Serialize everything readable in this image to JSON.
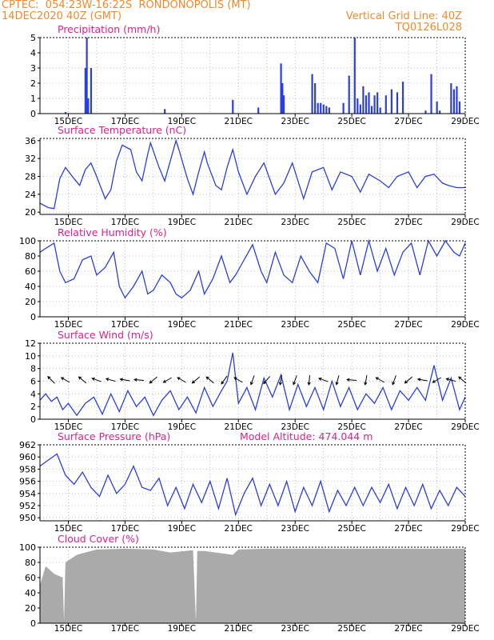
{
  "header": {
    "line1_left": "CPTEC:  054:23W-16:22S  RONDONOPOLIS (MT)",
    "line2_left": "14DEC2020 40Z (GMT)",
    "line2_right": "Vertical Grid Line: 40Z",
    "line3_right": "TQ0126L028"
  },
  "colors": {
    "header": "#f08a2c",
    "title": "#e0218a",
    "series": "#2a3fe0",
    "cloud": "#aaaaaa",
    "grid": "#b0b0b0"
  },
  "x_axis": {
    "ticks": [
      "15DEC",
      "17DEC",
      "19DEC",
      "21DEC",
      "23DEC",
      "25DEC",
      "27DEC",
      "29DEC"
    ],
    "start_day": 14.0,
    "end_day": 29.0,
    "tick_days": [
      15,
      17,
      19,
      21,
      23,
      25,
      27,
      29
    ],
    "grid_days": [
      15,
      16,
      17,
      18,
      19,
      20,
      21,
      22,
      23,
      24,
      25,
      26,
      27,
      28,
      29
    ]
  },
  "chart_data": [
    {
      "id": "precip",
      "type": "bar",
      "title": "Precipitation (mm/h)",
      "ylim": [
        0,
        5
      ],
      "yticks": [
        0,
        1,
        2,
        3,
        4,
        5
      ],
      "x": [
        14.9,
        15.6,
        15.65,
        15.7,
        15.8,
        18.4,
        20.8,
        21.7,
        22.5,
        22.55,
        22.6,
        23.6,
        23.7,
        23.8,
        23.9,
        24.0,
        24.1,
        24.2,
        24.7,
        24.9,
        25.1,
        25.2,
        25.3,
        25.4,
        25.5,
        25.6,
        25.7,
        25.8,
        25.9,
        26.0,
        26.2,
        26.4,
        26.6,
        26.8,
        27.6,
        27.8,
        28.0,
        28.1,
        28.5,
        28.6,
        28.7,
        28.8
      ],
      "values": [
        0.1,
        3.0,
        5.0,
        1.0,
        3.0,
        0.3,
        0.9,
        0.4,
        3.3,
        2.0,
        1.2,
        2.6,
        2.0,
        0.7,
        0.7,
        0.6,
        0.5,
        0.4,
        0.7,
        2.5,
        5.0,
        1.0,
        0.6,
        1.8,
        1.2,
        1.4,
        0.5,
        1.2,
        1.4,
        0.4,
        1.2,
        1.6,
        1.4,
        2.1,
        0.2,
        2.6,
        0.8,
        0.2,
        2.0,
        1.6,
        1.8,
        0.8
      ]
    },
    {
      "id": "temp",
      "type": "line",
      "title": "Surface Temperature (nC)",
      "ylim": [
        19.5,
        36.5
      ],
      "yticks": [
        20,
        24,
        28,
        32,
        36
      ],
      "x": [
        14.0,
        14.3,
        14.5,
        14.7,
        14.9,
        15.2,
        15.4,
        15.6,
        15.8,
        16.0,
        16.3,
        16.5,
        16.7,
        16.9,
        17.2,
        17.4,
        17.6,
        17.8,
        17.9,
        18.2,
        18.4,
        18.6,
        18.8,
        18.9,
        19.2,
        19.4,
        19.6,
        19.8,
        19.9,
        20.2,
        20.4,
        20.6,
        20.8,
        21.0,
        21.3,
        21.6,
        21.9,
        22.3,
        22.6,
        22.9,
        23.3,
        23.6,
        24.0,
        24.3,
        24.6,
        25.0,
        25.3,
        25.6,
        26.0,
        26.3,
        26.6,
        27.0,
        27.3,
        27.6,
        27.9,
        28.2,
        28.4,
        28.7,
        29.0
      ],
      "values": [
        22.0,
        21.0,
        20.8,
        27.5,
        30.0,
        27.5,
        26.0,
        29.5,
        31.0,
        28.0,
        23.0,
        25.0,
        31.5,
        35.0,
        34.0,
        29.0,
        27.0,
        33.0,
        35.5,
        30.0,
        27.0,
        31.5,
        36.0,
        34.0,
        27.5,
        24.0,
        29.0,
        33.5,
        31.0,
        26.0,
        25.0,
        30.0,
        34.0,
        29.0,
        24.0,
        28.0,
        31.0,
        24.0,
        26.5,
        31.0,
        23.0,
        29.0,
        30.0,
        25.0,
        29.0,
        28.0,
        24.5,
        28.5,
        27.0,
        25.5,
        28.0,
        29.0,
        25.5,
        28.0,
        28.5,
        26.5,
        26.0,
        25.5,
        25.5
      ]
    },
    {
      "id": "rh",
      "type": "line",
      "title": "Relative Humidity (%)",
      "ylim": [
        0,
        100
      ],
      "yticks": [
        0,
        20,
        40,
        60,
        80,
        100
      ],
      "x": [
        14.0,
        14.2,
        14.5,
        14.7,
        14.9,
        15.2,
        15.5,
        15.8,
        16.0,
        16.3,
        16.6,
        16.8,
        17.0,
        17.3,
        17.6,
        17.8,
        18.0,
        18.3,
        18.6,
        18.8,
        19.0,
        19.3,
        19.6,
        19.8,
        20.1,
        20.4,
        20.7,
        20.9,
        21.2,
        21.5,
        21.8,
        22.0,
        22.3,
        22.6,
        22.9,
        23.2,
        23.5,
        23.8,
        24.1,
        24.4,
        24.7,
        25.0,
        25.3,
        25.6,
        25.9,
        26.2,
        26.5,
        26.8,
        27.1,
        27.4,
        27.7,
        28.0,
        28.3,
        28.6,
        28.8,
        29.0
      ],
      "values": [
        85,
        90,
        97,
        60,
        45,
        50,
        75,
        80,
        55,
        65,
        85,
        40,
        25,
        40,
        60,
        30,
        35,
        55,
        45,
        30,
        25,
        35,
        60,
        30,
        50,
        80,
        45,
        55,
        75,
        95,
        60,
        45,
        85,
        55,
        45,
        80,
        60,
        45,
        97,
        90,
        50,
        100,
        55,
        100,
        60,
        90,
        55,
        85,
        97,
        55,
        100,
        80,
        100,
        85,
        80,
        97
      ]
    },
    {
      "id": "wind",
      "type": "line",
      "title": "Surface Wind (m/s)",
      "ylim": [
        0,
        12
      ],
      "yticks": [
        0,
        2,
        4,
        6,
        8,
        10,
        12
      ],
      "x": [
        14.0,
        14.2,
        14.4,
        14.6,
        14.8,
        15.0,
        15.3,
        15.6,
        15.9,
        16.2,
        16.5,
        16.8,
        17.1,
        17.4,
        17.7,
        18.0,
        18.3,
        18.6,
        18.9,
        19.2,
        19.5,
        19.8,
        20.1,
        20.4,
        20.6,
        20.8,
        21.0,
        21.3,
        21.6,
        21.9,
        22.2,
        22.5,
        22.8,
        23.1,
        23.4,
        23.7,
        24.0,
        24.3,
        24.6,
        24.9,
        25.2,
        25.5,
        25.8,
        26.1,
        26.4,
        26.7,
        27.0,
        27.3,
        27.6,
        27.9,
        28.2,
        28.5,
        28.8,
        29.0
      ],
      "values": [
        3.0,
        4.0,
        2.8,
        3.5,
        1.5,
        2.5,
        0.6,
        2.5,
        3.5,
        0.8,
        4.0,
        1.2,
        4.5,
        2.0,
        3.5,
        0.6,
        3.0,
        4.5,
        1.5,
        3.5,
        1.0,
        5.0,
        2.0,
        4.5,
        6.0,
        10.5,
        2.5,
        5.0,
        1.5,
        6.5,
        3.5,
        7.0,
        1.5,
        5.5,
        2.0,
        5.0,
        1.5,
        6.0,
        2.0,
        5.0,
        1.5,
        4.0,
        2.5,
        5.0,
        1.5,
        4.5,
        3.0,
        5.0,
        3.0,
        8.5,
        3.0,
        6.5,
        1.5,
        3.5
      ],
      "arrows": [
        {
          "x": 14.4,
          "dir": 315
        },
        {
          "x": 14.9,
          "dir": 300
        },
        {
          "x": 15.5,
          "dir": 310
        },
        {
          "x": 16.0,
          "dir": 290
        },
        {
          "x": 16.5,
          "dir": 285
        },
        {
          "x": 17.0,
          "dir": 280
        },
        {
          "x": 17.5,
          "dir": 275
        },
        {
          "x": 18.0,
          "dir": 230
        },
        {
          "x": 18.5,
          "dir": 240
        },
        {
          "x": 19.0,
          "dir": 300
        },
        {
          "x": 19.5,
          "dir": 230
        },
        {
          "x": 20.0,
          "dir": 310
        },
        {
          "x": 20.5,
          "dir": 215
        },
        {
          "x": 21.0,
          "dir": 300
        },
        {
          "x": 21.5,
          "dir": 200
        },
        {
          "x": 22.0,
          "dir": 220
        },
        {
          "x": 22.5,
          "dir": 190
        },
        {
          "x": 23.0,
          "dir": 200
        },
        {
          "x": 23.5,
          "dir": 185
        },
        {
          "x": 24.0,
          "dir": 290
        },
        {
          "x": 24.5,
          "dir": 195
        },
        {
          "x": 25.0,
          "dir": 275
        },
        {
          "x": 25.5,
          "dir": 190
        },
        {
          "x": 26.0,
          "dir": 300
        },
        {
          "x": 26.5,
          "dir": 200
        },
        {
          "x": 27.0,
          "dir": 230
        },
        {
          "x": 27.5,
          "dir": 280
        },
        {
          "x": 28.0,
          "dir": 240
        },
        {
          "x": 28.5,
          "dir": 285
        },
        {
          "x": 28.9,
          "dir": 310
        }
      ]
    },
    {
      "id": "press",
      "type": "line",
      "title": "Surface Pressure (hPa)",
      "annotation": "Model Altitude: 474.044 m",
      "ylim": [
        949.5,
        962
      ],
      "yticks": [
        950,
        952,
        954,
        956,
        958,
        960,
        962
      ],
      "x": [
        14.0,
        14.3,
        14.6,
        14.9,
        15.2,
        15.5,
        15.8,
        16.1,
        16.4,
        16.7,
        17.0,
        17.3,
        17.6,
        17.9,
        18.2,
        18.5,
        18.8,
        19.1,
        19.4,
        19.7,
        20.0,
        20.3,
        20.6,
        20.9,
        21.2,
        21.5,
        21.8,
        22.1,
        22.4,
        22.7,
        23.0,
        23.3,
        23.6,
        23.9,
        24.2,
        24.5,
        24.8,
        25.1,
        25.4,
        25.7,
        26.0,
        26.3,
        26.6,
        26.9,
        27.2,
        27.5,
        27.8,
        28.1,
        28.4,
        28.7,
        29.0
      ],
      "values": [
        958.5,
        959.5,
        960.5,
        957.0,
        955.5,
        957.5,
        955.0,
        953.5,
        957.0,
        954.0,
        955.5,
        958.5,
        955.0,
        954.5,
        956.5,
        952.0,
        955.0,
        951.5,
        955.5,
        952.5,
        956.0,
        951.5,
        956.5,
        950.5,
        954.0,
        956.5,
        952.0,
        955.5,
        952.0,
        956.0,
        951.0,
        955.0,
        952.0,
        956.0,
        951.0,
        954.5,
        952.0,
        955.0,
        952.0,
        955.0,
        952.5,
        955.5,
        951.5,
        955.0,
        952.0,
        955.5,
        951.5,
        954.5,
        952.0,
        955.0,
        953.5
      ]
    },
    {
      "id": "cloud",
      "type": "area",
      "title": "Cloud Cover (%)",
      "ylim": [
        0,
        100
      ],
      "yticks": [
        0,
        20,
        40,
        60,
        80,
        100
      ],
      "x": [
        14.0,
        14.2,
        14.5,
        14.8,
        14.85,
        14.9,
        15.3,
        16.0,
        17.0,
        18.0,
        18.6,
        19.4,
        19.5,
        19.55,
        19.8,
        20.8,
        21.0,
        22.0,
        23.0,
        24.0,
        25.0,
        26.0,
        27.0,
        28.0,
        29.0
      ],
      "values": [
        50,
        75,
        65,
        60,
        2,
        80,
        90,
        97,
        98,
        97,
        93,
        96,
        2,
        95,
        95,
        90,
        97,
        98,
        98,
        98,
        98,
        98,
        98,
        98,
        98
      ]
    }
  ]
}
